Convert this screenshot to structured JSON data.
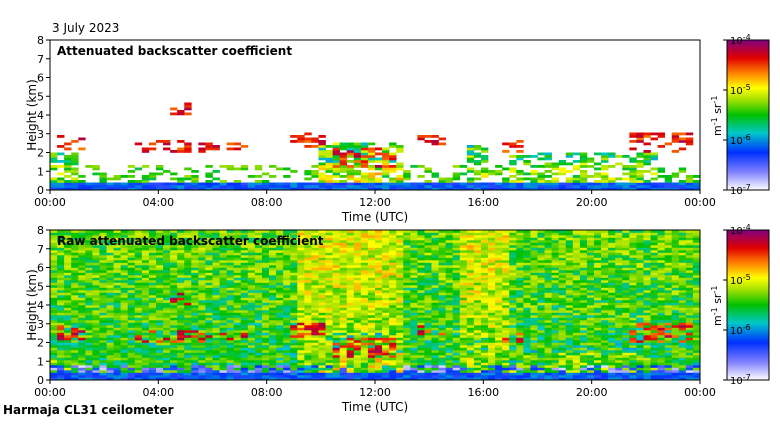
{
  "date_label": "3 July 2023",
  "footer_label": "Harmaja CL31 ceilometer",
  "chart_data": [
    {
      "type": "heatmap",
      "title": "Attenuated backscatter coefficient",
      "xlabel": "Time (UTC)",
      "ylabel": "Height (km)",
      "xlim": [
        0,
        24
      ],
      "ylim": [
        0,
        8
      ],
      "xticks": [
        "00:00",
        "04:00",
        "08:00",
        "12:00",
        "16:00",
        "20:00",
        "00:00"
      ],
      "yticks": [
        "0",
        "1",
        "2",
        "3",
        "4",
        "5",
        "6",
        "7",
        "8"
      ],
      "colorbar": {
        "label_base": "m",
        "label_sr": "sr",
        "label_exp": "-1",
        "ticks": [
          {
            "base": "10",
            "exp": "-4"
          },
          {
            "base": "10",
            "exp": "-5"
          },
          {
            "base": "10",
            "exp": "-6"
          },
          {
            "base": "10",
            "exp": "-7"
          }
        ],
        "range": [
          1e-07,
          0.0001
        ]
      }
    },
    {
      "type": "heatmap",
      "title": "Raw attenuated backscatter coefficient",
      "xlabel": "Time (UTC)",
      "ylabel": "Height (km)",
      "xlim": [
        0,
        24
      ],
      "ylim": [
        0,
        8
      ],
      "xticks": [
        "00:00",
        "04:00",
        "08:00",
        "12:00",
        "16:00",
        "20:00",
        "00:00"
      ],
      "yticks": [
        "0",
        "1",
        "2",
        "3",
        "4",
        "5",
        "6",
        "7",
        "8"
      ],
      "colorbar": {
        "label_base": "m",
        "label_sr": "sr",
        "label_exp": "-1",
        "ticks": [
          {
            "base": "10",
            "exp": "-4"
          },
          {
            "base": "10",
            "exp": "-5"
          },
          {
            "base": "10",
            "exp": "-6"
          },
          {
            "base": "10",
            "exp": "-7"
          }
        ],
        "range": [
          1e-07,
          0.0001
        ]
      }
    }
  ]
}
